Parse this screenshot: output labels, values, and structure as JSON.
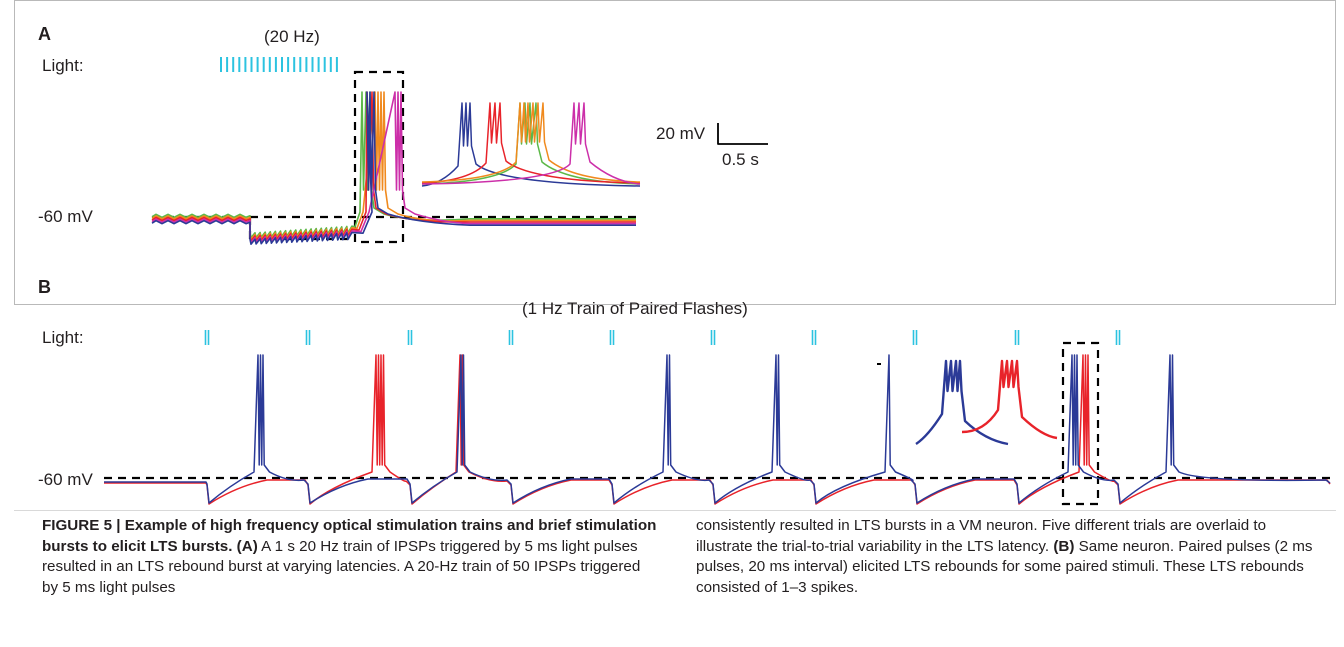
{
  "panel_a": {
    "letter": "A",
    "freq_label": "(20 Hz)",
    "light_label": "Light:",
    "baseline_label": "-60 mV",
    "scalebar_v": "20 mV",
    "scalebar_t": "0.5 s"
  },
  "panel_b": {
    "letter": "B",
    "train_label": "(1 Hz Train of Paired Flashes)",
    "light_label": "Light:",
    "baseline_label": "-60 mV"
  },
  "colors": {
    "light": "#2cc3e0",
    "blue": "#2b3a97",
    "red": "#e8232a",
    "green": "#5cb848",
    "orange": "#f08a1e",
    "magenta": "#cc2fa9",
    "dash": "#000000"
  },
  "caption": {
    "figure_label": "FIGURE 5 | Example of high frequency optical stimulation trains and brief stimulation bursts to elicit LTS bursts.",
    "ref_a": "(A)",
    "text_a": "A 1 s 20 Hz train of IPSPs triggered by 5 ms light pulses resulted in an LTS rebound burst at varying latencies. A 20-Hz train of 50 IPSPs triggered by 5 ms light pulses",
    "text_col2": "consistently resulted in LTS bursts in a VM neuron. Five different trials are overlaid to illustrate the trial-to-trial variability in the LTS latency.",
    "ref_b": "(B)",
    "text_b": "Same neuron. Paired pulses (2 ms pulses, 20 ms interval) elicited LTS rebounds for some paired stimuli. These LTS rebounds consisted of 1–3 spikes."
  }
}
